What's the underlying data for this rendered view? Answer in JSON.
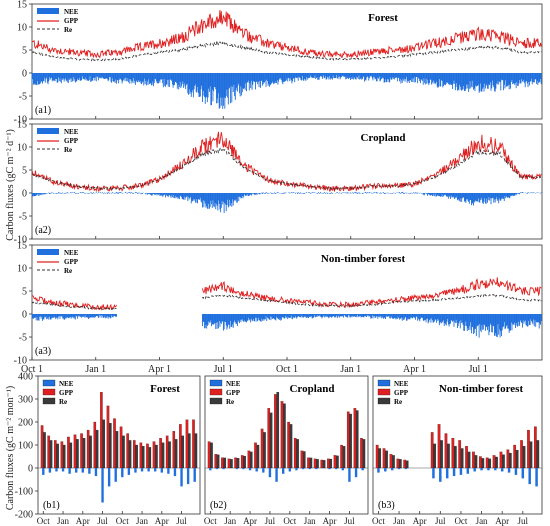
{
  "chart_data": {
    "type": "composite",
    "daily": {
      "type": "area+line",
      "ylabel": "Carbon fluxes (gC m⁻² d⁻¹)",
      "ylim": [
        -10,
        15
      ],
      "yticks": [
        "15",
        "10",
        "5",
        "0",
        "-5",
        "-10"
      ],
      "xticks": [
        "Oct 1",
        "Jan 1",
        "Apr 1",
        "Jul 1",
        "Oct 1",
        "Jan 1",
        "Apr 1",
        "Jul 1"
      ],
      "legend": [
        "NEE",
        "GPP",
        "Re"
      ],
      "colors": {
        "NEE": "#1f6fde",
        "GPP": "#e02020",
        "Re": "#303030"
      },
      "panels": [
        {
          "title": "Forest",
          "label": "(a1)",
          "x_months": [
            0,
            1,
            2,
            3,
            4,
            5,
            6,
            7,
            8,
            9,
            10,
            11,
            12,
            13,
            14,
            15,
            16,
            17,
            18,
            19,
            20,
            21,
            22,
            23
          ],
          "GPP": [
            6.5,
            5.0,
            4.5,
            4.0,
            4.5,
            5.5,
            6.5,
            7.5,
            10.5,
            12.0,
            8.5,
            6.5,
            5.5,
            4.5,
            4.0,
            4.0,
            4.5,
            5.0,
            5.5,
            6.5,
            7.5,
            8.5,
            8.0,
            6.5
          ],
          "Re": [
            4.5,
            3.5,
            3.0,
            2.8,
            3.0,
            3.8,
            4.5,
            5.0,
            6.0,
            6.5,
            5.5,
            4.5,
            4.0,
            3.5,
            3.0,
            3.0,
            3.2,
            3.5,
            4.0,
            4.5,
            5.0,
            5.5,
            5.5,
            4.5
          ],
          "NEE": [
            -2.0,
            -1.5,
            -1.5,
            -1.2,
            -1.5,
            -1.7,
            -2.0,
            -2.5,
            -4.5,
            -5.5,
            -3.0,
            -2.0,
            -1.5,
            -1.0,
            -1.0,
            -1.0,
            -1.3,
            -1.5,
            -1.5,
            -2.0,
            -2.5,
            -3.0,
            -2.5,
            -2.0
          ]
        },
        {
          "title": "Cropland",
          "label": "(a2)",
          "x_months": [
            0,
            1,
            2,
            3,
            4,
            5,
            6,
            7,
            8,
            9,
            10,
            11,
            12,
            13,
            14,
            15,
            16,
            17,
            18,
            19,
            20,
            21,
            22,
            23
          ],
          "GPP": [
            4.5,
            2.5,
            1.5,
            1.0,
            1.0,
            1.5,
            3.0,
            6.0,
            10.0,
            12.0,
            6.0,
            3.0,
            2.0,
            1.5,
            1.0,
            1.0,
            1.5,
            1.5,
            2.0,
            4.0,
            7.0,
            11.0,
            10.0,
            3.5
          ],
          "Re": [
            4.0,
            2.5,
            1.5,
            1.0,
            1.0,
            1.5,
            3.0,
            5.5,
            8.5,
            9.5,
            5.5,
            3.0,
            2.0,
            1.5,
            1.0,
            1.0,
            1.5,
            1.5,
            2.0,
            3.5,
            6.0,
            9.0,
            8.5,
            3.5
          ],
          "NEE": [
            -0.5,
            0.0,
            0.0,
            0.0,
            0.0,
            0.0,
            -0.5,
            -1.0,
            -2.0,
            -3.0,
            -0.5,
            0.0,
            0.0,
            0.0,
            0.0,
            0.0,
            0.0,
            0.0,
            0.0,
            -0.5,
            -1.0,
            -2.0,
            -1.5,
            0.0
          ]
        },
        {
          "title": "Non-timber forest",
          "label": "(a3)",
          "x_months": [
            0,
            1,
            2,
            3,
            4,
            5,
            6,
            7,
            8,
            9,
            10,
            11,
            12,
            13,
            14,
            15,
            16,
            17,
            18,
            19,
            20,
            21,
            22,
            23
          ],
          "GPP": [
            3.5,
            2.5,
            2.0,
            1.5,
            1.5,
            null,
            null,
            null,
            5.0,
            6.0,
            4.5,
            3.5,
            3.0,
            2.5,
            2.0,
            2.0,
            2.5,
            3.0,
            3.5,
            4.0,
            5.0,
            6.5,
            7.0,
            5.0
          ],
          "Re": [
            2.5,
            2.0,
            1.5,
            1.2,
            1.2,
            null,
            null,
            null,
            3.5,
            4.0,
            3.5,
            3.0,
            2.5,
            2.0,
            1.8,
            1.8,
            2.0,
            2.5,
            2.8,
            3.0,
            3.5,
            4.0,
            4.0,
            3.0
          ],
          "NEE": [
            -1.0,
            -0.8,
            -0.7,
            -0.6,
            -0.6,
            null,
            null,
            null,
            -2.0,
            -2.5,
            -1.5,
            -1.0,
            -0.8,
            -0.6,
            -0.5,
            -0.5,
            -0.6,
            -0.8,
            -1.0,
            -1.5,
            -2.0,
            -3.5,
            -3.5,
            -2.0
          ]
        }
      ]
    },
    "monthly": {
      "type": "bar",
      "ylabel": "Carbon fluxes (gC m⁻² mon⁻¹)",
      "ylim": [
        -200,
        400
      ],
      "yticks": [
        "400",
        "300",
        "200",
        "100",
        "0",
        "-100",
        "-200"
      ],
      "xticks": [
        "Oct",
        "Jan",
        "Apr",
        "Jul",
        "Oct",
        "Jan",
        "Apr",
        "Jul"
      ],
      "legend": [
        "NEE",
        "GPP",
        "Re"
      ],
      "colors": {
        "NEE": "#1f6fde",
        "GPP": "#e02020",
        "Re": "#3a3a3a"
      },
      "panels": [
        {
          "title": "Forest",
          "label": "(b1)",
          "GPP": [
            185,
            140,
            120,
            115,
            135,
            145,
            150,
            165,
            200,
            330,
            270,
            215,
            180,
            150,
            120,
            110,
            105,
            115,
            130,
            140,
            160,
            190,
            210,
            210
          ],
          "Re": [
            155,
            120,
            105,
            100,
            110,
            125,
            130,
            140,
            165,
            210,
            195,
            160,
            140,
            120,
            100,
            95,
            90,
            100,
            110,
            115,
            125,
            140,
            150,
            150
          ],
          "NEE": [
            -30,
            -20,
            -15,
            -15,
            -25,
            -20,
            -20,
            -25,
            -35,
            -150,
            -80,
            -60,
            -40,
            -30,
            -20,
            -15,
            -15,
            -15,
            -20,
            -25,
            -35,
            -80,
            -70,
            -60
          ]
        },
        {
          "title": "Cropland",
          "label": "(b2)",
          "GPP": [
            115,
            60,
            45,
            40,
            45,
            55,
            75,
            110,
            170,
            260,
            320,
            290,
            200,
            130,
            75,
            45,
            40,
            35,
            40,
            55,
            100,
            245,
            260,
            130
          ],
          "Re": [
            110,
            58,
            44,
            38,
            43,
            52,
            70,
            100,
            155,
            240,
            330,
            280,
            190,
            125,
            72,
            44,
            38,
            34,
            39,
            53,
            95,
            235,
            250,
            125
          ],
          "NEE": [
            -10,
            -5,
            -5,
            0,
            -5,
            -5,
            -10,
            -15,
            -20,
            -40,
            -60,
            -25,
            -15,
            -10,
            -5,
            -5,
            -5,
            0,
            -5,
            -5,
            -10,
            -60,
            -40,
            -10
          ]
        },
        {
          "title": "Non-timber forest",
          "label": "(b3)",
          "GPP": [
            100,
            85,
            60,
            40,
            35,
            null,
            null,
            null,
            155,
            190,
            150,
            130,
            120,
            95,
            70,
            50,
            45,
            55,
            70,
            80,
            100,
            120,
            165,
            180
          ],
          "Re": [
            85,
            75,
            55,
            38,
            32,
            null,
            null,
            null,
            105,
            120,
            105,
            95,
            85,
            70,
            55,
            42,
            40,
            48,
            58,
            65,
            78,
            95,
            115,
            120
          ],
          "NEE": [
            -20,
            -15,
            -10,
            -5,
            -5,
            null,
            null,
            null,
            -45,
            -60,
            -45,
            -35,
            -30,
            -25,
            -15,
            -10,
            -10,
            -10,
            -15,
            -20,
            -30,
            -45,
            -70,
            -80
          ]
        }
      ]
    }
  }
}
